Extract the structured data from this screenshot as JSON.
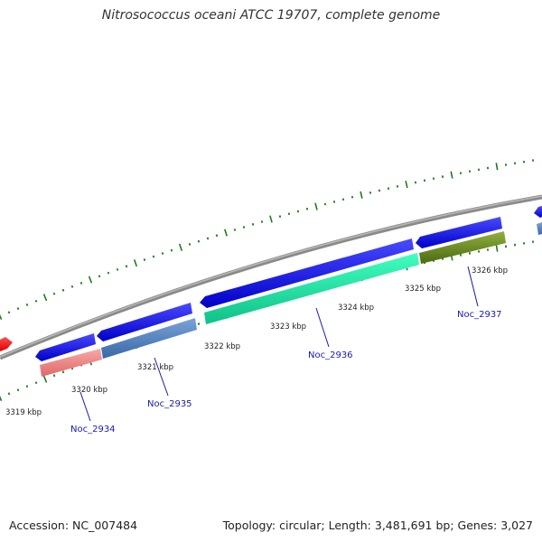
{
  "title": "Nitrosococcus oceani ATCC 19707, complete genome",
  "footer": {
    "accession": "Accession: NC_007484",
    "summary": "Topology: circular; Length: 3,481,691 bp; Genes: 3,027"
  },
  "kbp_labels": [
    "3319 kbp",
    "3320 kbp",
    "3321 kbp",
    "3322 kbp",
    "3323 kbp",
    "3324 kbp",
    "3325 kbp",
    "3326 kbp"
  ],
  "gene_labels": [
    "Noc_2934",
    "Noc_2935",
    "Noc_2936",
    "Noc_2937"
  ],
  "colors": {
    "backbone": "#8a8a8a",
    "cds": "#1010e0",
    "tick": "#1e7a1e",
    "gene_label": "#1a1aaa",
    "red_feature": "#ff1010",
    "pink_feature": "#f08a8a",
    "steelblue_feature": "#4a80c0",
    "aquamarine_feature": "#10f0a8",
    "olive_feature": "#6b8c1e"
  }
}
